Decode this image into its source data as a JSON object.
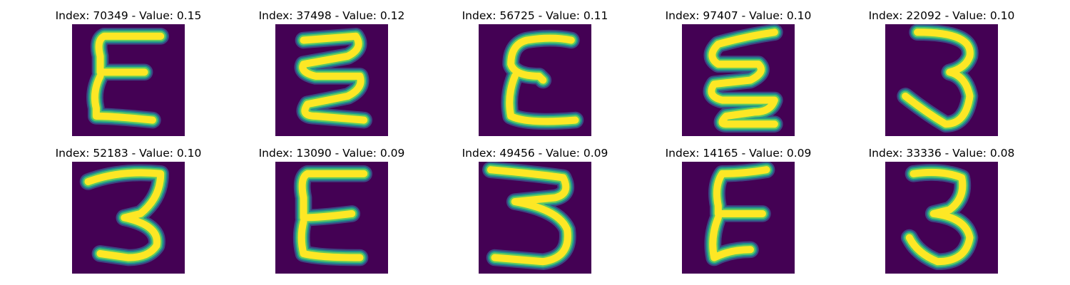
{
  "colors": {
    "background": "#440154",
    "low": "#3b528b",
    "mid": "#21918c",
    "high": "#5ec962",
    "peak": "#fde725"
  },
  "panels": [
    {
      "index": "70349",
      "value": "0.15",
      "title": "Index: 70349 - Value: 0.15",
      "glyph_shape": "handwritten-E"
    },
    {
      "index": "37498",
      "value": "0.12",
      "title": "Index: 37498 - Value: 0.12",
      "glyph_shape": "handwritten-zigzag-E"
    },
    {
      "index": "56725",
      "value": "0.11",
      "title": "Index: 56725 - Value: 0.11",
      "glyph_shape": "handwritten-E"
    },
    {
      "index": "97407",
      "value": "0.10",
      "title": "Index: 97407 - Value: 0.10",
      "glyph_shape": "handwritten-zigzag-E"
    },
    {
      "index": "22092",
      "value": "0.10",
      "title": "Index: 22092 - Value: 0.10",
      "glyph_shape": "handwritten-3"
    },
    {
      "index": "52183",
      "value": "0.10",
      "title": "Index: 52183 - Value: 0.10",
      "glyph_shape": "handwritten-3"
    },
    {
      "index": "13090",
      "value": "0.09",
      "title": "Index: 13090 - Value: 0.09",
      "glyph_shape": "handwritten-E"
    },
    {
      "index": "49456",
      "value": "0.09",
      "title": "Index: 49456 - Value: 0.09",
      "glyph_shape": "handwritten-3"
    },
    {
      "index": "14165",
      "value": "0.09",
      "title": "Index: 14165 - Value: 0.09",
      "glyph_shape": "handwritten-E"
    },
    {
      "index": "33336",
      "value": "0.08",
      "title": "Index: 33336 - Value: 0.08",
      "glyph_shape": "handwritten-3"
    }
  ]
}
